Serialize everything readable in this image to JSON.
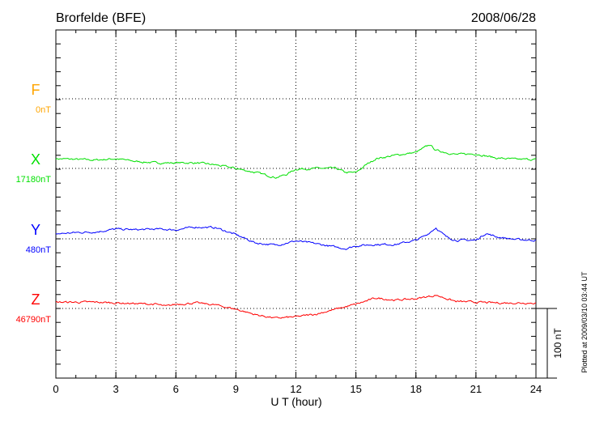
{
  "chart_data": {
    "type": "line",
    "title": "Brorfelde (BFE)",
    "date": "2008/06/28",
    "xlabel": "U T (hour)",
    "xlim": [
      0,
      24
    ],
    "xticks": [
      "0",
      "3",
      "6",
      "9",
      "12",
      "15",
      "18",
      "21",
      "24"
    ],
    "grid": true,
    "scale_bar_label": "100 nT",
    "plotted_note": "Plotted at 2009/03/10 03:44 UT",
    "series": [
      {
        "name": "F",
        "baseline_label": "0nT",
        "color": "#ffa500",
        "x": [],
        "y": []
      },
      {
        "name": "X",
        "baseline_label": "17180nT",
        "color": "#00e000",
        "x": [
          0,
          1,
          2,
          3,
          4,
          5,
          6,
          7,
          8,
          9,
          10,
          11,
          11.5,
          12,
          13,
          14,
          14.5,
          15,
          15.5,
          16,
          17,
          18,
          18.7,
          19,
          20,
          21,
          22,
          23,
          24
        ],
        "y": [
          14,
          13,
          12,
          14,
          10,
          8,
          8,
          8,
          5,
          0,
          -6,
          -13,
          -9,
          -1,
          0,
          0,
          -6,
          -6,
          5,
          14,
          19,
          23,
          34,
          26,
          20,
          21,
          15,
          13,
          13
        ]
      },
      {
        "name": "Y",
        "baseline_label": "480nT",
        "color": "#0000ff",
        "x": [
          0,
          1,
          2,
          3,
          4,
          5,
          6,
          7,
          8,
          9,
          10,
          11,
          12,
          13,
          14,
          14.5,
          15,
          16,
          17,
          18,
          18.5,
          19,
          19.5,
          20,
          21,
          21.5,
          22,
          23,
          24
        ],
        "y": [
          7,
          9,
          10,
          14,
          13,
          14,
          13,
          17,
          16,
          6,
          -6,
          -9,
          -3,
          -7,
          -12,
          -14,
          -10,
          -8,
          -8,
          -2,
          5,
          16,
          3,
          -2,
          -2,
          8,
          3,
          -1,
          -2
        ]
      },
      {
        "name": "Z",
        "baseline_label": "46790nT",
        "color": "#ff0000",
        "x": [
          0,
          1,
          2,
          3,
          4,
          5,
          5.5,
          6,
          7,
          8,
          9,
          10,
          11,
          12,
          13,
          14,
          15,
          16,
          17,
          18,
          19,
          20,
          21,
          22,
          23,
          24
        ],
        "y": [
          9,
          9,
          9,
          8,
          7,
          6,
          3,
          6,
          8,
          5,
          -1,
          -9,
          -14,
          -12,
          -8,
          -1,
          6,
          15,
          12,
          14,
          19,
          10,
          9,
          8,
          8,
          8
        ]
      }
    ]
  }
}
